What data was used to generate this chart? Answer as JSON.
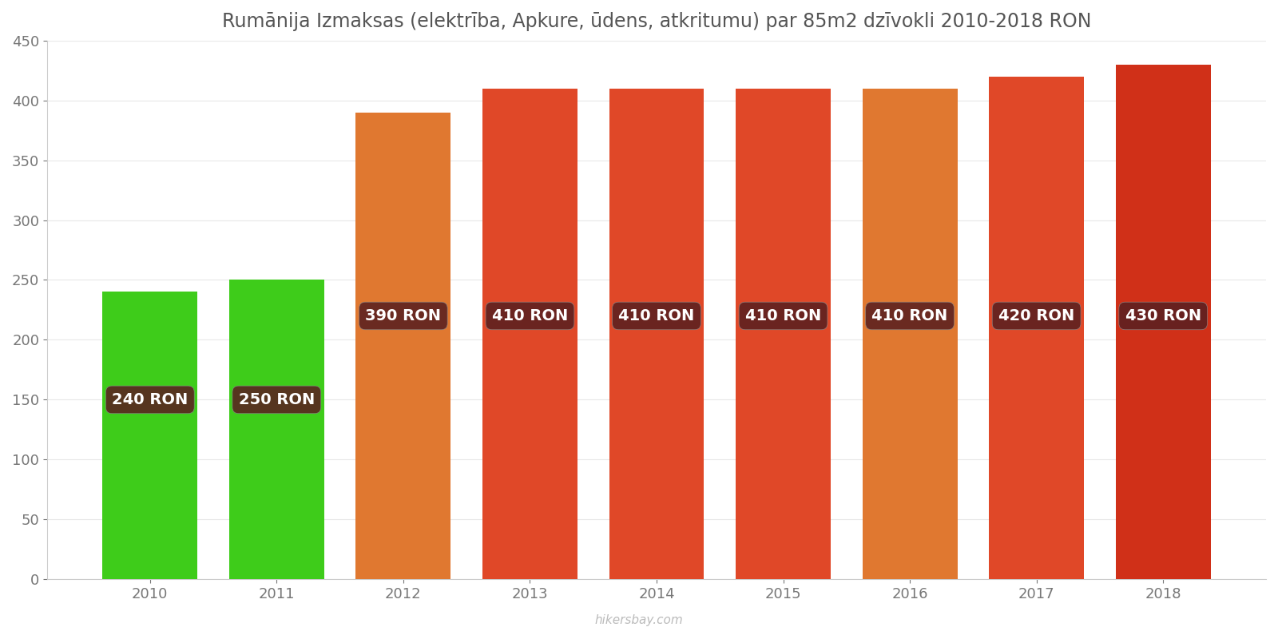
{
  "years": [
    2010,
    2011,
    2012,
    2013,
    2014,
    2015,
    2016,
    2017,
    2018
  ],
  "values": [
    240,
    250,
    390,
    410,
    410,
    410,
    410,
    420,
    430
  ],
  "bar_colors": [
    "#3ecc1a",
    "#3ecc1a",
    "#e07830",
    "#e04828",
    "#e04828",
    "#e04828",
    "#e07830",
    "#e04828",
    "#d03018"
  ],
  "labels": [
    "240 RON",
    "250 RON",
    "390 RON",
    "410 RON",
    "410 RON",
    "410 RON",
    "410 RON",
    "420 RON",
    "430 RON"
  ],
  "label_y_positions": [
    150,
    150,
    220,
    220,
    220,
    220,
    220,
    220,
    220
  ],
  "title": "Rumānija Izmaksas (elektrība, Apkure, ūdens, atkritumu) par 85m2 dzīvokli 2010-2018 RON",
  "ylim": [
    0,
    450
  ],
  "yticks": [
    0,
    50,
    100,
    150,
    200,
    250,
    300,
    350,
    400,
    450
  ],
  "watermark": "hikersbay.com",
  "background_color": "#ffffff",
  "label_bg_color": "#5a2020",
  "label_text_color": "#ffffff",
  "title_fontsize": 17,
  "label_fontsize": 14,
  "tick_fontsize": 13,
  "bar_width": 0.75
}
